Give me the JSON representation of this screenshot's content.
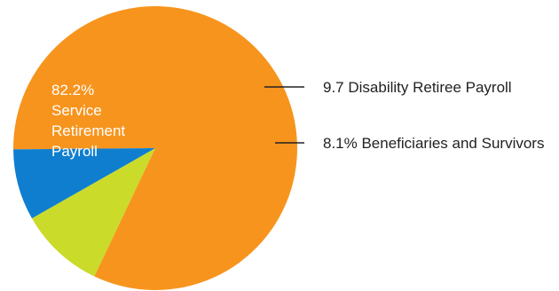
{
  "chart_data": {
    "type": "pie",
    "title": "",
    "slices": [
      {
        "value": 82.2,
        "color": "#f7941d",
        "label_lines": [
          "82.2%",
          "Service",
          "Retirement",
          "Payroll"
        ],
        "label_placement": "inside"
      },
      {
        "value": 9.7,
        "color": "#cadb2a",
        "label": "9.7 Disability Retiree Payroll",
        "label_placement": "outside-right"
      },
      {
        "value": 8.1,
        "color": "#0f7ecf",
        "label": "8.1% Beneficiaries and Survivors",
        "label_placement": "outside-right"
      }
    ],
    "legend": "none"
  }
}
